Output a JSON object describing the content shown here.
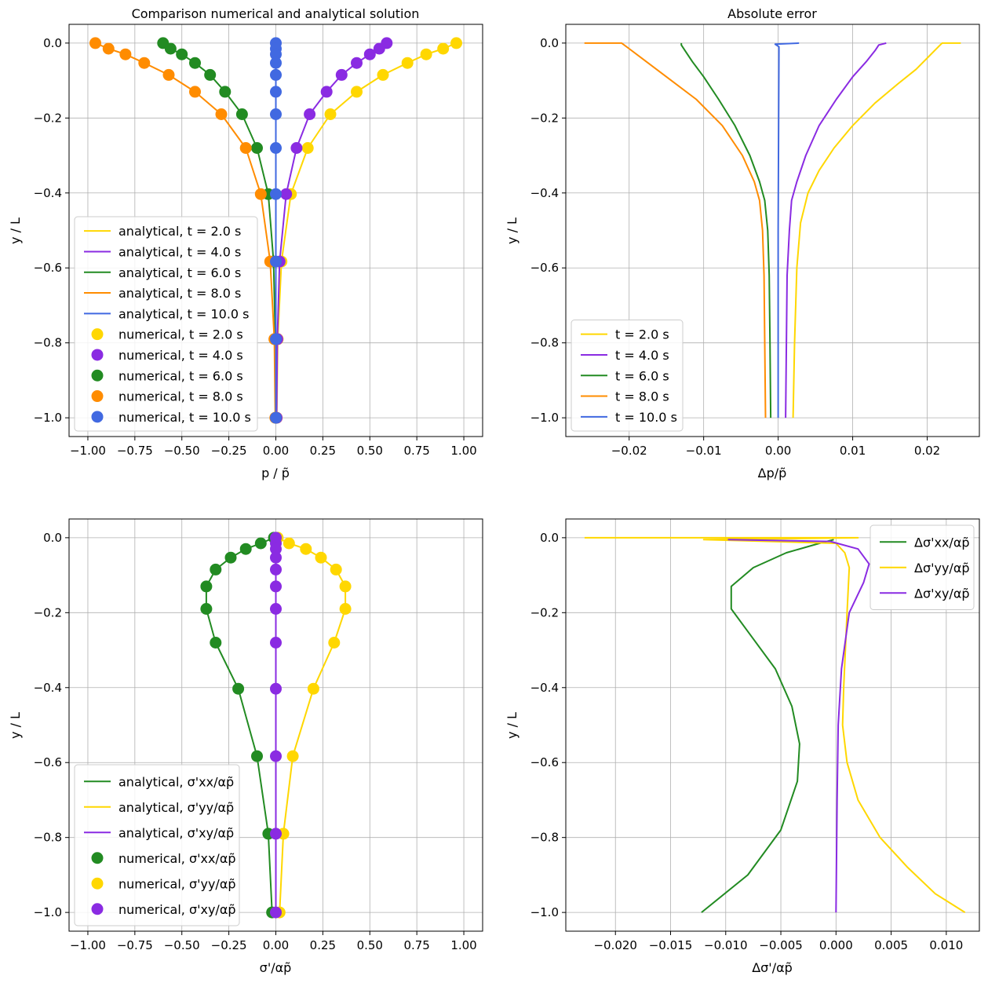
{
  "colors": {
    "gold": "#FFD700",
    "purple": "#8A2BE2",
    "green": "#228B22",
    "orange": "#FF8C00",
    "blue": "#4169E1",
    "grid": "#b0b0b0"
  },
  "chart_data": [
    {
      "type": "line",
      "title": "Comparison numerical and analytical solution",
      "xlabel": "p / p̃",
      "ylabel": "y / L",
      "xlim": [
        -1.1,
        1.1
      ],
      "ylim": [
        -1.05,
        0.05
      ],
      "xticks": [
        -1.0,
        -0.75,
        -0.5,
        -0.25,
        0.0,
        0.25,
        0.5,
        0.75,
        1.0
      ],
      "xtick_labels": [
        "−1.00",
        "−0.75",
        "−0.50",
        "−0.25",
        "0.00",
        "0.25",
        "0.50",
        "0.75",
        "1.00"
      ],
      "yticks": [
        0.0,
        -0.2,
        -0.4,
        -0.6,
        -0.8,
        -1.0
      ],
      "ytick_labels": [
        "0.0",
        "−0.2",
        "−0.4",
        "−0.6",
        "−0.8",
        "−1.0"
      ],
      "grid": true,
      "legend_position": "lower-left",
      "series": [
        {
          "name": "analytical, t = 2.0 s",
          "kind": "line",
          "color": "#FFD700",
          "x": [
            0.96,
            0.89,
            0.8,
            0.7,
            0.57,
            0.43,
            0.29,
            0.17,
            0.08,
            0.03,
            0.01,
            0.005
          ],
          "y": [
            0.0,
            -0.015,
            -0.03,
            -0.053,
            -0.085,
            -0.13,
            -0.19,
            -0.28,
            -0.403,
            -0.583,
            -0.79,
            -1.0
          ]
        },
        {
          "name": "analytical, t = 4.0 s",
          "kind": "line",
          "color": "#8A2BE2",
          "x": [
            0.59,
            0.55,
            0.5,
            0.43,
            0.35,
            0.27,
            0.18,
            0.11,
            0.055,
            0.02,
            0.008,
            0.004
          ],
          "y": [
            0.0,
            -0.015,
            -0.03,
            -0.053,
            -0.085,
            -0.13,
            -0.19,
            -0.28,
            -0.403,
            -0.583,
            -0.79,
            -1.0
          ]
        },
        {
          "name": "analytical, t = 6.0 s",
          "kind": "line",
          "color": "#228B22",
          "x": [
            -0.6,
            -0.56,
            -0.5,
            -0.43,
            -0.35,
            -0.27,
            -0.18,
            -0.1,
            -0.04,
            -0.012,
            -0.003,
            -0.001
          ],
          "y": [
            0.0,
            -0.015,
            -0.03,
            -0.053,
            -0.085,
            -0.13,
            -0.19,
            -0.28,
            -0.403,
            -0.583,
            -0.79,
            -1.0
          ]
        },
        {
          "name": "analytical, t = 8.0 s",
          "kind": "line",
          "color": "#FF8C00",
          "x": [
            -0.96,
            -0.89,
            -0.8,
            -0.7,
            -0.57,
            -0.43,
            -0.29,
            -0.16,
            -0.08,
            -0.03,
            -0.008,
            -0.003
          ],
          "y": [
            0.0,
            -0.015,
            -0.03,
            -0.053,
            -0.085,
            -0.13,
            -0.19,
            -0.28,
            -0.403,
            -0.583,
            -0.79,
            -1.0
          ]
        },
        {
          "name": "analytical, t = 10.0 s",
          "kind": "line",
          "color": "#4169E1",
          "x": [
            0.0,
            0.0,
            0.0,
            0.0,
            0.0,
            0.0,
            0.0,
            0.0,
            0.0,
            0.0,
            0.0,
            0.0
          ],
          "y": [
            0.0,
            -0.015,
            -0.03,
            -0.053,
            -0.085,
            -0.13,
            -0.19,
            -0.28,
            -0.403,
            -0.583,
            -0.79,
            -1.0
          ]
        },
        {
          "name": "numerical, t = 2.0 s",
          "kind": "scatter",
          "color": "#FFD700",
          "x": [
            0.96,
            0.89,
            0.8,
            0.7,
            0.57,
            0.43,
            0.29,
            0.17,
            0.08,
            0.03,
            0.01,
            0.005
          ],
          "y": [
            0.0,
            -0.015,
            -0.03,
            -0.053,
            -0.085,
            -0.13,
            -0.19,
            -0.28,
            -0.403,
            -0.583,
            -0.79,
            -1.0
          ]
        },
        {
          "name": "numerical, t = 4.0 s",
          "kind": "scatter",
          "color": "#8A2BE2",
          "x": [
            0.59,
            0.55,
            0.5,
            0.43,
            0.35,
            0.27,
            0.18,
            0.11,
            0.055,
            0.02,
            0.008,
            0.004
          ],
          "y": [
            0.0,
            -0.015,
            -0.03,
            -0.053,
            -0.085,
            -0.13,
            -0.19,
            -0.28,
            -0.403,
            -0.583,
            -0.79,
            -1.0
          ]
        },
        {
          "name": "numerical, t = 6.0 s",
          "kind": "scatter",
          "color": "#228B22",
          "x": [
            -0.6,
            -0.56,
            -0.5,
            -0.43,
            -0.35,
            -0.27,
            -0.18,
            -0.1,
            -0.04,
            -0.012,
            -0.003,
            -0.001
          ],
          "y": [
            0.0,
            -0.015,
            -0.03,
            -0.053,
            -0.085,
            -0.13,
            -0.19,
            -0.28,
            -0.403,
            -0.583,
            -0.79,
            -1.0
          ]
        },
        {
          "name": "numerical, t = 8.0 s",
          "kind": "scatter",
          "color": "#FF8C00",
          "x": [
            -0.96,
            -0.89,
            -0.8,
            -0.7,
            -0.57,
            -0.43,
            -0.29,
            -0.16,
            -0.08,
            -0.03,
            -0.008,
            -0.003
          ],
          "y": [
            0.0,
            -0.015,
            -0.03,
            -0.053,
            -0.085,
            -0.13,
            -0.19,
            -0.28,
            -0.403,
            -0.583,
            -0.79,
            -1.0
          ]
        },
        {
          "name": "numerical, t = 10.0 s",
          "kind": "scatter",
          "color": "#4169E1",
          "x": [
            0.0,
            0.0,
            0.0,
            0.0,
            0.0,
            0.0,
            0.0,
            0.0,
            0.0,
            0.0,
            0.0,
            0.0
          ],
          "y": [
            0.0,
            -0.015,
            -0.03,
            -0.053,
            -0.085,
            -0.13,
            -0.19,
            -0.28,
            -0.403,
            -0.583,
            -0.79,
            -1.0
          ]
        }
      ]
    },
    {
      "type": "line",
      "title": "Absolute error",
      "xlabel": "Δp/p̃",
      "ylabel": "y / L",
      "xlim": [
        -0.0285,
        0.027
      ],
      "ylim": [
        -1.05,
        0.05
      ],
      "xticks": [
        -0.02,
        -0.01,
        0.0,
        0.01,
        0.02
      ],
      "xtick_labels": [
        "−0.02",
        "−0.01",
        "0.00",
        "0.01",
        "0.02"
      ],
      "yticks": [
        0.0,
        -0.2,
        -0.4,
        -0.6,
        -0.8,
        -1.0
      ],
      "ytick_labels": [
        "0.0",
        "−0.2",
        "−0.4",
        "−0.6",
        "−0.8",
        "−1.0"
      ],
      "grid": true,
      "legend_position": "lower-left",
      "series": [
        {
          "name": "t = 2.0 s",
          "kind": "line",
          "color": "#FFD700",
          "x": [
            0.0245,
            0.022,
            0.0215,
            0.02,
            0.0185,
            0.016,
            0.013,
            0.01,
            0.0075,
            0.0055,
            0.004,
            0.003,
            0.0025,
            0.0022,
            0.002
          ],
          "y": [
            0.0,
            0.0,
            -0.01,
            -0.04,
            -0.07,
            -0.11,
            -0.16,
            -0.22,
            -0.28,
            -0.34,
            -0.4,
            -0.48,
            -0.6,
            -0.8,
            -1.0
          ]
        },
        {
          "name": "t = 4.0 s",
          "kind": "line",
          "color": "#8A2BE2",
          "x": [
            0.0145,
            0.0135,
            0.013,
            0.0118,
            0.01,
            0.0078,
            0.0055,
            0.0037,
            0.0025,
            0.0018,
            0.0015,
            0.0012,
            0.0011,
            0.001
          ],
          "y": [
            0.0,
            -0.005,
            -0.02,
            -0.05,
            -0.09,
            -0.15,
            -0.22,
            -0.3,
            -0.37,
            -0.42,
            -0.5,
            -0.62,
            -0.8,
            -1.0
          ]
        },
        {
          "name": "t = 6.0 s",
          "kind": "line",
          "color": "#228B22",
          "x": [
            -0.013,
            -0.013,
            -0.0125,
            -0.0115,
            -0.01,
            -0.008,
            -0.0058,
            -0.0038,
            -0.0025,
            -0.0018,
            -0.0014,
            -0.0012,
            -0.0011,
            -0.001
          ],
          "y": [
            0.0,
            -0.005,
            -0.02,
            -0.05,
            -0.09,
            -0.15,
            -0.22,
            -0.3,
            -0.37,
            -0.42,
            -0.5,
            -0.62,
            -0.8,
            -1.0
          ]
        },
        {
          "name": "t = 8.0 s",
          "kind": "line",
          "color": "#FF8C00",
          "x": [
            -0.026,
            -0.021,
            -0.02,
            -0.018,
            -0.015,
            -0.011,
            -0.0075,
            -0.0048,
            -0.0032,
            -0.0025,
            -0.0021,
            -0.0019,
            -0.0018,
            -0.0017
          ],
          "y": [
            0.0,
            0.0,
            -0.015,
            -0.045,
            -0.09,
            -0.15,
            -0.22,
            -0.3,
            -0.37,
            -0.42,
            -0.5,
            -0.62,
            -0.8,
            -1.0
          ]
        },
        {
          "name": "t = 10.0 s",
          "kind": "line",
          "color": "#4169E1",
          "x": [
            0.0028,
            -0.0004,
            0.0001,
            0.0001,
            0.0,
            0.0
          ],
          "y": [
            0.0,
            -0.003,
            -0.01,
            -0.02,
            -0.5,
            -1.0
          ]
        }
      ]
    },
    {
      "type": "line",
      "title": "",
      "xlabel": "σ'/αp̃",
      "ylabel": "y / L",
      "xlim": [
        -1.1,
        1.1
      ],
      "ylim": [
        -1.05,
        0.05
      ],
      "xticks": [
        -1.0,
        -0.75,
        -0.5,
        -0.25,
        0.0,
        0.25,
        0.5,
        0.75,
        1.0
      ],
      "xtick_labels": [
        "−1.00",
        "−0.75",
        "−0.50",
        "−0.25",
        "0.00",
        "0.25",
        "0.50",
        "0.75",
        "1.00"
      ],
      "yticks": [
        0.0,
        -0.2,
        -0.4,
        -0.6,
        -0.8,
        -1.0
      ],
      "ytick_labels": [
        "0.0",
        "−0.2",
        "−0.4",
        "−0.6",
        "−0.8",
        "−1.0"
      ],
      "grid": true,
      "legend_position": "lower-left",
      "series": [
        {
          "name": "analytical, σ'xx/αp̃",
          "kind": "line",
          "color": "#228B22",
          "x": [
            -0.01,
            -0.08,
            -0.16,
            -0.24,
            -0.32,
            -0.37,
            -0.37,
            -0.32,
            -0.2,
            -0.1,
            -0.04,
            -0.02
          ],
          "y": [
            0.0,
            -0.015,
            -0.03,
            -0.053,
            -0.085,
            -0.13,
            -0.19,
            -0.28,
            -0.403,
            -0.583,
            -0.79,
            -1.0
          ]
        },
        {
          "name": "analytical, σ'yy/αp̃",
          "kind": "line",
          "color": "#FFD700",
          "x": [
            0.01,
            0.07,
            0.16,
            0.24,
            0.32,
            0.37,
            0.37,
            0.31,
            0.2,
            0.09,
            0.04,
            0.02
          ],
          "y": [
            0.0,
            -0.015,
            -0.03,
            -0.053,
            -0.085,
            -0.13,
            -0.19,
            -0.28,
            -0.403,
            -0.583,
            -0.79,
            -1.0
          ]
        },
        {
          "name": "analytical, σ'xy/αp̃",
          "kind": "line",
          "color": "#8A2BE2",
          "x": [
            0.0,
            0.0,
            0.0,
            0.0,
            0.0,
            0.0,
            0.0,
            0.0,
            0.0,
            0.0,
            0.0,
            0.0
          ],
          "y": [
            0.0,
            -0.015,
            -0.03,
            -0.053,
            -0.085,
            -0.13,
            -0.19,
            -0.28,
            -0.403,
            -0.583,
            -0.79,
            -1.0
          ]
        },
        {
          "name": "numerical, σ'xx/αp̃",
          "kind": "scatter",
          "color": "#228B22",
          "x": [
            -0.01,
            -0.08,
            -0.16,
            -0.24,
            -0.32,
            -0.37,
            -0.37,
            -0.32,
            -0.2,
            -0.1,
            -0.04,
            -0.02
          ],
          "y": [
            0.0,
            -0.015,
            -0.03,
            -0.053,
            -0.085,
            -0.13,
            -0.19,
            -0.28,
            -0.403,
            -0.583,
            -0.79,
            -1.0
          ]
        },
        {
          "name": "numerical, σ'yy/αp̃",
          "kind": "scatter",
          "color": "#FFD700",
          "x": [
            0.01,
            0.07,
            0.16,
            0.24,
            0.32,
            0.37,
            0.37,
            0.31,
            0.2,
            0.09,
            0.04,
            0.02
          ],
          "y": [
            0.0,
            -0.015,
            -0.03,
            -0.053,
            -0.085,
            -0.13,
            -0.19,
            -0.28,
            -0.403,
            -0.583,
            -0.79,
            -1.0
          ]
        },
        {
          "name": "numerical, σ'xy/αp̃",
          "kind": "scatter",
          "color": "#8A2BE2",
          "x": [
            0.0,
            0.0,
            0.0,
            0.0,
            0.0,
            0.0,
            0.0,
            0.0,
            0.0,
            0.0,
            0.0,
            0.0
          ],
          "y": [
            0.0,
            -0.015,
            -0.03,
            -0.053,
            -0.085,
            -0.13,
            -0.19,
            -0.28,
            -0.403,
            -0.583,
            -0.79,
            -1.0
          ]
        }
      ]
    },
    {
      "type": "line",
      "title": "",
      "xlabel": "Δσ'/αp̃",
      "ylabel": "y / L",
      "xlim": [
        -0.0245,
        0.013
      ],
      "ylim": [
        -1.05,
        0.05
      ],
      "xticks": [
        -0.02,
        -0.015,
        -0.01,
        -0.005,
        0.0,
        0.005,
        0.01
      ],
      "xtick_labels": [
        "−0.020",
        "−0.015",
        "−0.010",
        "−0.005",
        "0.000",
        "0.005",
        "0.010"
      ],
      "yticks": [
        0.0,
        -0.2,
        -0.4,
        -0.6,
        -0.8,
        -1.0
      ],
      "ytick_labels": [
        "0.0",
        "−0.2",
        "−0.4",
        "−0.6",
        "−0.8",
        "−1.0"
      ],
      "grid": true,
      "legend_position": "top-right",
      "series": [
        {
          "name": "Δσ'xx/αp̃",
          "kind": "line",
          "color": "#228B22",
          "x": [
            -0.0002,
            -0.0015,
            -0.0045,
            -0.0075,
            -0.0095,
            -0.0095,
            -0.008,
            -0.0055,
            -0.004,
            -0.0033,
            -0.0035,
            -0.005,
            -0.008,
            -0.0122
          ],
          "y": [
            -0.005,
            -0.015,
            -0.04,
            -0.08,
            -0.13,
            -0.19,
            -0.25,
            -0.35,
            -0.45,
            -0.55,
            -0.65,
            -0.78,
            -0.9,
            -1.0
          ]
        },
        {
          "name": "Δσ'yy/αp̃",
          "kind": "line",
          "color": "#FFD700",
          "x": [
            -0.0228,
            0.002,
            -0.012,
            0.0,
            0.0008,
            0.0012,
            0.001,
            0.0007,
            0.0006,
            0.001,
            0.002,
            0.004,
            0.0065,
            0.009,
            0.0117
          ],
          "y": [
            0.0,
            0.0,
            -0.005,
            -0.015,
            -0.04,
            -0.08,
            -0.2,
            -0.4,
            -0.5,
            -0.6,
            -0.7,
            -0.8,
            -0.88,
            -0.95,
            -1.0
          ]
        },
        {
          "name": "Δσ'xy/αp̃",
          "kind": "line",
          "color": "#8A2BE2",
          "x": [
            -0.0098,
            -0.0005,
            0.002,
            0.003,
            0.0025,
            0.0012,
            0.0005,
            0.0002,
            0.0001,
            0.0
          ],
          "y": [
            -0.005,
            -0.01,
            -0.03,
            -0.07,
            -0.12,
            -0.2,
            -0.35,
            -0.5,
            -0.7,
            -1.0
          ]
        }
      ]
    }
  ]
}
